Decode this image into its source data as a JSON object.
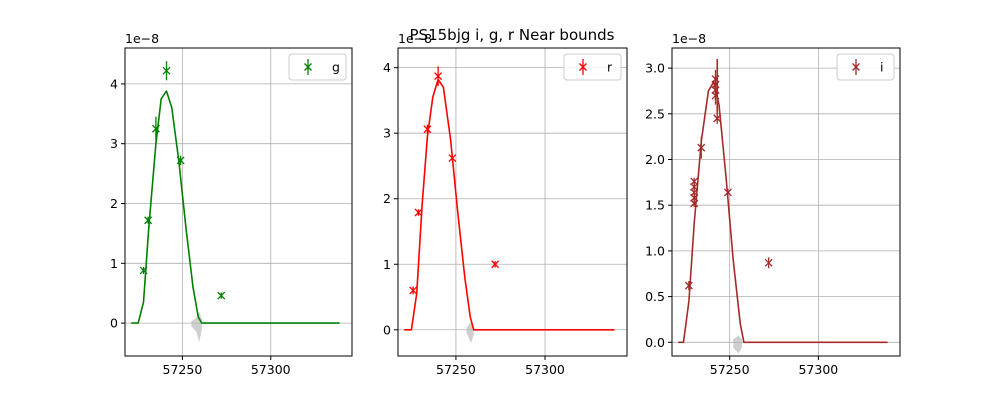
{
  "chart_data": {
    "type": "scatter",
    "title": "PS15bjg  i, g, r Near bounds",
    "panels": [
      {
        "band": "g",
        "color": "#008000",
        "xlim": [
          57217.5,
          57346
        ],
        "ylim": [
          -0.55,
          4.6
        ],
        "y_offset_label": "1e−8",
        "yticks": [
          0,
          1,
          2,
          3,
          4
        ],
        "ytick_labels": [
          "0",
          "1",
          "2",
          "3",
          "4"
        ],
        "xticks": [
          57250,
          57300
        ],
        "xtick_labels": [
          "57250",
          "57300"
        ],
        "grid": true,
        "legend": "top-right",
        "legend_label": "g",
        "points": [
          {
            "x": 57228.0,
            "y": 0.88,
            "err": 0.06
          },
          {
            "x": 57230.6,
            "y": 1.72,
            "err": 0.06
          },
          {
            "x": 57235.0,
            "y": 3.25,
            "err": 0.2
          },
          {
            "x": 57241.0,
            "y": 4.22,
            "err": 0.16
          },
          {
            "x": 57249.0,
            "y": 2.72,
            "err": 0.08
          },
          {
            "x": 57272.0,
            "y": 0.46,
            "err": 0.05
          }
        ],
        "model": [
          [
            57221,
            0
          ],
          [
            57225,
            0
          ],
          [
            57228,
            0.35
          ],
          [
            57231,
            1.6
          ],
          [
            57235,
            3.0
          ],
          [
            57238,
            3.75
          ],
          [
            57241,
            3.88
          ],
          [
            57244,
            3.6
          ],
          [
            57248,
            2.7
          ],
          [
            57252,
            1.6
          ],
          [
            57256,
            0.6
          ],
          [
            57259,
            0.1
          ],
          [
            57261,
            0
          ],
          [
            57339,
            0
          ]
        ],
        "band_spread": [
          [
            57255,
            0.05
          ],
          [
            57258,
            0.15
          ],
          [
            57259.5,
            0.32
          ],
          [
            57261,
            0.1
          ]
        ]
      },
      {
        "band": "r",
        "color": "#ff0000",
        "xlim": [
          57217.5,
          57346
        ],
        "ylim": [
          -0.4,
          4.3
        ],
        "y_offset_label": "1e−8",
        "yticks": [
          0,
          1,
          2,
          3,
          4
        ],
        "ytick_labels": [
          "0",
          "1",
          "2",
          "3",
          "4"
        ],
        "xticks": [
          57250,
          57300
        ],
        "xtick_labels": [
          "57250",
          "57300"
        ],
        "grid": true,
        "legend": "top-right",
        "legend_label": "r",
        "points": [
          {
            "x": 57226.0,
            "y": 0.6,
            "err": 0.06
          },
          {
            "x": 57229.0,
            "y": 1.79,
            "err": 0.05
          },
          {
            "x": 57234.0,
            "y": 3.06,
            "err": 0.07
          },
          {
            "x": 57240.0,
            "y": 3.87,
            "err": 0.15
          },
          {
            "x": 57248.0,
            "y": 2.62,
            "err": 0.05
          },
          {
            "x": 57272.0,
            "y": 1.0,
            "err": 0.05
          }
        ],
        "model": [
          [
            57221,
            0
          ],
          [
            57225,
            0
          ],
          [
            57228,
            0.55
          ],
          [
            57231,
            1.9
          ],
          [
            57234,
            2.95
          ],
          [
            57237,
            3.55
          ],
          [
            57240,
            3.82
          ],
          [
            57243,
            3.7
          ],
          [
            57247,
            2.9
          ],
          [
            57251,
            1.8
          ],
          [
            57255,
            0.8
          ],
          [
            57258,
            0.2
          ],
          [
            57260,
            0
          ],
          [
            57339,
            0
          ]
        ],
        "band_spread": [
          [
            57256,
            0.05
          ],
          [
            57258.5,
            0.2
          ],
          [
            57260,
            0.08
          ]
        ]
      },
      {
        "band": "i",
        "color": "#a52a2a",
        "xlim": [
          57217.5,
          57346
        ],
        "ylim": [
          -0.15,
          3.22
        ],
        "y_offset_label": "1e−8",
        "yticks": [
          0.0,
          0.5,
          1.0,
          1.5,
          2.0,
          2.5,
          3.0
        ],
        "ytick_labels": [
          "0.0",
          "0.5",
          "1.0",
          "1.5",
          "2.0",
          "2.5",
          "3.0"
        ],
        "xticks": [
          57250,
          57300
        ],
        "xtick_labels": [
          "57250",
          "57300"
        ],
        "grid": true,
        "legend": "top-right",
        "legend_label": "i",
        "points": [
          {
            "x": 57227.0,
            "y": 0.62,
            "err": 0.05
          },
          {
            "x": 57230.0,
            "y": 1.52,
            "err": 0.04
          },
          {
            "x": 57230.0,
            "y": 1.58,
            "err": 0.04
          },
          {
            "x": 57230.0,
            "y": 1.64,
            "err": 0.04
          },
          {
            "x": 57230.0,
            "y": 1.7,
            "err": 0.04
          },
          {
            "x": 57230.0,
            "y": 1.76,
            "err": 0.04
          },
          {
            "x": 57234.0,
            "y": 2.13,
            "err": 0.12
          },
          {
            "x": 57242.0,
            "y": 2.7,
            "err": 0.1
          },
          {
            "x": 57242.0,
            "y": 2.76,
            "err": 0.1
          },
          {
            "x": 57242.0,
            "y": 2.82,
            "err": 0.1
          },
          {
            "x": 57242.0,
            "y": 2.88,
            "err": 0.1
          },
          {
            "x": 57243.0,
            "y": 2.45,
            "err": 0.06
          },
          {
            "x": 57249.0,
            "y": 1.64,
            "err": 0.04
          },
          {
            "x": 57272.0,
            "y": 0.87,
            "err": 0.06
          }
        ],
        "model": [
          [
            57221,
            0
          ],
          [
            57224,
            0
          ],
          [
            57227,
            0.45
          ],
          [
            57230,
            1.3
          ],
          [
            57234,
            2.2
          ],
          [
            57238,
            2.75
          ],
          [
            57241,
            2.85
          ],
          [
            57244,
            2.6
          ],
          [
            57248,
            1.8
          ],
          [
            57252,
            0.9
          ],
          [
            57256,
            0.2
          ],
          [
            57258,
            0
          ],
          [
            57339,
            0
          ]
        ],
        "band_spread": [
          [
            57252,
            0.06
          ],
          [
            57255,
            0.12
          ],
          [
            57257,
            0.05
          ]
        ],
        "tall_errorbar": {
          "x": 57243.0,
          "y_low": 2.5,
          "y_high": 3.1
        }
      }
    ]
  }
}
